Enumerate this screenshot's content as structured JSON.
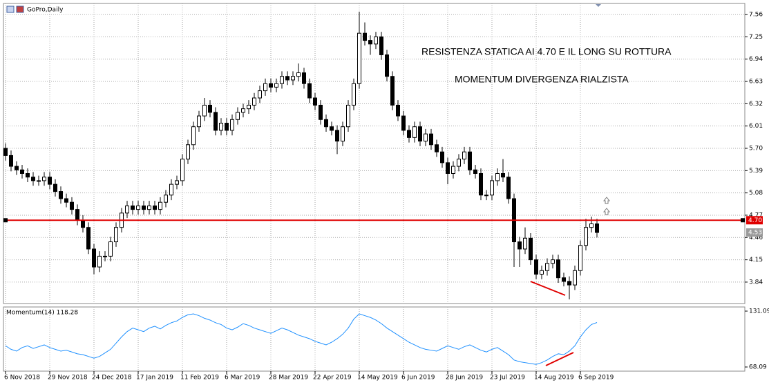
{
  "header": {
    "title": "GoPro,Daily"
  },
  "chart_data": {
    "type": "candlestick",
    "categories": [
      "6 Nov 2018",
      null,
      null,
      null,
      null,
      null,
      null,
      null,
      "29 Nov 2018",
      null,
      null,
      null,
      null,
      null,
      null,
      null,
      "24 Dec 2018",
      null,
      null,
      null,
      null,
      null,
      null,
      null,
      "17 Jan 2019",
      null,
      null,
      null,
      null,
      null,
      null,
      null,
      "11 Feb 2019",
      null,
      null,
      null,
      null,
      null,
      null,
      null,
      "6 Mar 2019",
      null,
      null,
      null,
      null,
      null,
      null,
      null,
      "28 Mar 2019",
      null,
      null,
      null,
      null,
      null,
      null,
      null,
      "22 Apr 2019",
      null,
      null,
      null,
      null,
      null,
      null,
      null,
      "14 May 2019",
      null,
      null,
      null,
      null,
      null,
      null,
      null,
      "6 Jun 2019",
      null,
      null,
      null,
      null,
      null,
      null,
      null,
      "28 Jun 2019",
      null,
      null,
      null,
      null,
      null,
      null,
      null,
      "23 Jul 2019",
      null,
      null,
      null,
      null,
      null,
      null,
      null,
      "14 Aug 2019",
      null,
      null,
      null,
      null,
      null,
      null,
      null,
      "6 Sep 2019",
      null,
      null,
      null
    ],
    "open": [
      5.7,
      5.6,
      5.45,
      5.4,
      5.35,
      5.3,
      5.25,
      5.25,
      5.3,
      5.2,
      5.1,
      5.0,
      4.95,
      4.85,
      4.7,
      4.6,
      4.3,
      4.05,
      4.2,
      4.2,
      4.4,
      4.6,
      4.8,
      4.9,
      4.85,
      4.9,
      4.85,
      4.9,
      4.85,
      4.95,
      5.05,
      5.2,
      5.25,
      5.55,
      5.75,
      6.0,
      6.15,
      6.3,
      6.2,
      5.95,
      6.05,
      5.95,
      6.1,
      6.2,
      6.25,
      6.3,
      6.4,
      6.5,
      6.6,
      6.55,
      6.6,
      6.7,
      6.65,
      6.7,
      6.75,
      6.6,
      6.4,
      6.3,
      6.1,
      6.0,
      5.95,
      5.8,
      6.0,
      6.3,
      6.6,
      7.3,
      7.2,
      7.15,
      7.25,
      7.0,
      6.7,
      6.3,
      6.15,
      5.95,
      5.85,
      6.0,
      5.8,
      5.9,
      5.75,
      5.65,
      5.5,
      5.35,
      5.45,
      5.55,
      5.65,
      5.4,
      5.35,
      5.05,
      5.05,
      5.25,
      5.35,
      5.3,
      5.0,
      4.4,
      4.3,
      4.45,
      4.15,
      3.95,
      4.0,
      4.1,
      4.15,
      3.9,
      3.85,
      3.8,
      4.0,
      4.35,
      4.6,
      4.65
    ],
    "high": [
      5.77,
      5.67,
      5.52,
      5.47,
      5.42,
      5.37,
      5.32,
      5.37,
      5.37,
      5.27,
      5.17,
      5.07,
      5.02,
      4.92,
      4.77,
      4.67,
      4.37,
      4.27,
      4.27,
      4.47,
      4.67,
      4.87,
      4.97,
      4.97,
      4.97,
      4.97,
      4.97,
      4.97,
      5.02,
      5.12,
      5.27,
      5.32,
      5.62,
      5.82,
      6.07,
      6.22,
      6.4,
      6.37,
      6.27,
      6.12,
      6.12,
      6.17,
      6.27,
      6.32,
      6.37,
      6.47,
      6.57,
      6.67,
      6.67,
      6.67,
      6.77,
      6.77,
      6.77,
      6.88,
      6.82,
      6.67,
      6.47,
      6.37,
      6.17,
      6.07,
      6.02,
      6.07,
      6.37,
      6.67,
      7.6,
      7.45,
      7.27,
      7.32,
      7.32,
      7.07,
      6.77,
      6.37,
      6.22,
      6.02,
      6.07,
      6.07,
      5.97,
      5.97,
      5.82,
      5.72,
      5.57,
      5.52,
      5.62,
      5.72,
      5.72,
      5.47,
      5.42,
      5.12,
      5.32,
      5.42,
      5.55,
      5.37,
      5.07,
      4.47,
      4.6,
      4.52,
      4.22,
      4.07,
      4.17,
      4.22,
      4.22,
      3.97,
      3.92,
      4.07,
      4.42,
      4.72,
      4.75,
      4.72
    ],
    "low": [
      5.53,
      5.38,
      5.33,
      5.28,
      5.23,
      5.18,
      5.18,
      5.18,
      5.13,
      5.03,
      4.93,
      4.88,
      4.78,
      4.63,
      4.53,
      4.23,
      3.95,
      3.98,
      4.13,
      4.13,
      4.33,
      4.53,
      4.73,
      4.78,
      4.78,
      4.78,
      4.78,
      4.78,
      4.78,
      4.88,
      4.98,
      5.13,
      5.18,
      5.48,
      5.68,
      5.93,
      6.08,
      6.13,
      5.88,
      5.88,
      5.88,
      5.88,
      6.03,
      6.13,
      6.18,
      6.23,
      6.33,
      6.43,
      6.48,
      6.48,
      6.53,
      6.58,
      6.58,
      6.63,
      6.53,
      6.33,
      6.23,
      6.03,
      5.93,
      5.88,
      5.62,
      5.73,
      5.93,
      6.23,
      6.53,
      7.13,
      7.0,
      7.08,
      6.93,
      6.63,
      6.23,
      6.08,
      5.88,
      5.78,
      5.78,
      5.73,
      5.73,
      5.68,
      5.58,
      5.43,
      5.2,
      5.28,
      5.38,
      5.48,
      5.33,
      5.28,
      4.98,
      4.98,
      4.98,
      5.18,
      5.23,
      4.93,
      4.05,
      4.05,
      4.23,
      4.08,
      3.88,
      3.88,
      3.93,
      4.03,
      3.83,
      3.78,
      3.6,
      3.73,
      3.93,
      4.28,
      4.53,
      4.46
    ],
    "close": [
      5.6,
      5.45,
      5.4,
      5.35,
      5.3,
      5.25,
      5.25,
      5.3,
      5.2,
      5.1,
      5.0,
      4.95,
      4.85,
      4.7,
      4.6,
      4.3,
      4.05,
      4.2,
      4.2,
      4.4,
      4.6,
      4.8,
      4.9,
      4.85,
      4.9,
      4.85,
      4.9,
      4.85,
      4.95,
      5.05,
      5.2,
      5.25,
      5.55,
      5.75,
      6.0,
      6.15,
      6.3,
      6.2,
      5.95,
      6.05,
      5.95,
      6.1,
      6.2,
      6.25,
      6.3,
      6.4,
      6.5,
      6.6,
      6.55,
      6.6,
      6.7,
      6.65,
      6.7,
      6.75,
      6.6,
      6.4,
      6.3,
      6.1,
      6.0,
      5.95,
      5.8,
      6.0,
      6.3,
      6.6,
      7.3,
      7.2,
      7.15,
      7.25,
      7.0,
      6.7,
      6.3,
      6.15,
      5.95,
      5.85,
      6.0,
      5.8,
      5.9,
      5.75,
      5.65,
      5.5,
      5.35,
      5.45,
      5.55,
      5.65,
      5.4,
      5.35,
      5.05,
      5.05,
      5.25,
      5.35,
      5.3,
      5.0,
      4.4,
      4.3,
      4.45,
      4.15,
      3.95,
      4.0,
      4.1,
      4.15,
      3.9,
      3.85,
      3.8,
      4.0,
      4.35,
      4.6,
      4.65,
      4.53
    ],
    "ylim": [
      3.542,
      7.714
    ],
    "yticks": [
      7.56,
      7.25,
      6.94,
      6.63,
      6.32,
      6.01,
      {
        "value": 5.7,
        "label": "5.70"
      },
      5.39,
      5.08,
      4.77,
      4.46,
      4.15,
      3.84
    ],
    "resistance": {
      "value": 4.7,
      "label": "4.70",
      "color": "#e00000"
    },
    "last_price": 4.53,
    "grid": true,
    "annotations": [
      "RESISTENZA STATICA AI 4.70 E IL LONG SU ROTTURA",
      "MOMENTUM DIVERGENZA RIALZISTA"
    ],
    "momentum": {
      "title": "Momentum(14) 118.28",
      "color": "#1e90ff",
      "values": [
        92,
        88,
        86,
        90,
        92,
        89,
        91,
        93,
        90,
        88,
        86,
        87,
        85,
        83,
        82,
        80,
        78,
        80,
        84,
        88,
        95,
        102,
        108,
        112,
        110,
        108,
        112,
        114,
        111,
        115,
        118,
        120,
        124,
        127,
        128,
        126,
        123,
        121,
        118,
        116,
        112,
        110,
        113,
        117,
        115,
        112,
        110,
        108,
        106,
        109,
        112,
        110,
        107,
        104,
        102,
        100,
        97,
        95,
        93,
        96,
        100,
        105,
        112,
        122,
        128,
        126,
        124,
        121,
        117,
        112,
        108,
        104,
        100,
        96,
        93,
        90,
        88,
        87,
        86,
        89,
        92,
        90,
        88,
        91,
        93,
        90,
        87,
        85,
        88,
        90,
        86,
        82,
        76,
        74,
        73,
        72,
        71,
        73,
        76,
        80,
        83,
        82,
        86,
        92,
        102,
        110,
        116,
        118.28
      ],
      "ylim": [
        63.42,
        135.76
      ],
      "yticks": [
        131.09,
        68.09
      ]
    }
  }
}
